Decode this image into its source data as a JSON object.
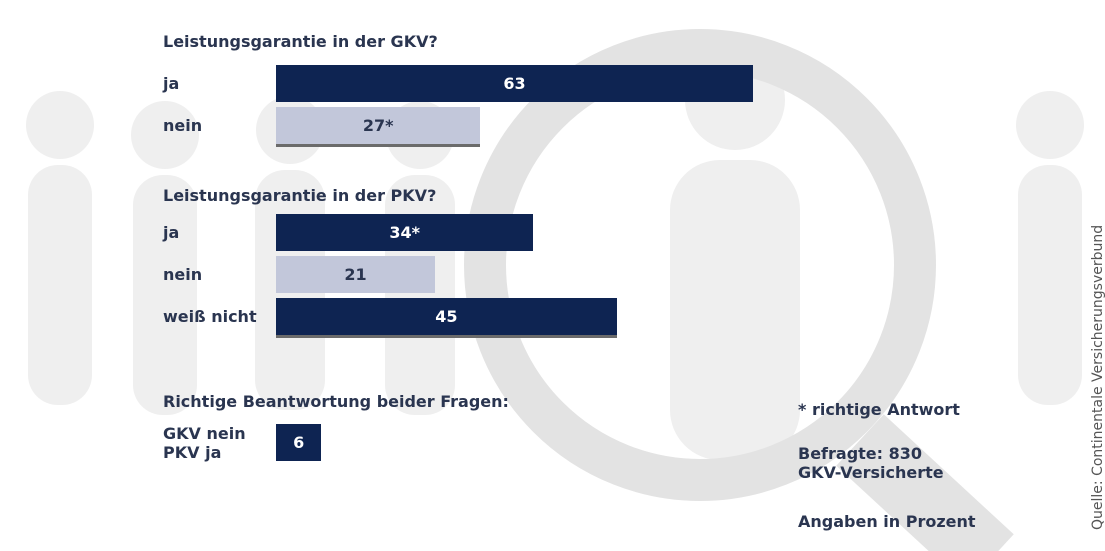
{
  "chart_data": [
    {
      "type": "bar",
      "title": "Leistungsgarantie in der GKV?",
      "categories": [
        "ja",
        "nein"
      ],
      "values": [
        63,
        27
      ],
      "value_labels": [
        "63",
        "27*"
      ],
      "colors": [
        "#0e2452",
        "#c2c7da"
      ]
    },
    {
      "type": "bar",
      "title": "Leistungsgarantie in der PKV?",
      "categories": [
        "ja",
        "nein",
        "weiß nicht"
      ],
      "values": [
        34,
        21,
        45
      ],
      "value_labels": [
        "34*",
        "21",
        "45"
      ],
      "colors": [
        "#0e2452",
        "#c2c7da",
        "#0e2452"
      ]
    },
    {
      "type": "bar",
      "title": "Richtige Beantwortung beider Fragen:",
      "categories": [
        "GKV nein\nPKV ja"
      ],
      "values": [
        6
      ],
      "value_labels": [
        "6"
      ],
      "colors": [
        "#0e2452"
      ]
    }
  ],
  "notes": [
    "* richtige Antwort",
    "Befragte: 830\nGKV-Versicherte",
    "Angaben in Prozent"
  ],
  "source": "Quelle: Continentale Versicherungsverbund"
}
